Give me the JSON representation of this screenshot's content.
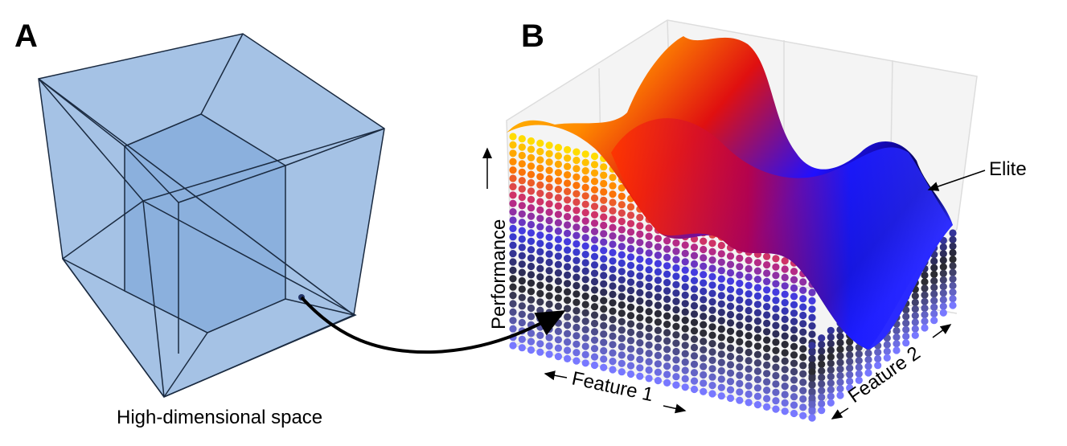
{
  "panels": [
    {
      "letter": "A",
      "caption": "High-dimensional space"
    },
    {
      "letter": "B",
      "y_axis_label": "Performance",
      "x_axis_label": "Feature 1",
      "z_axis_label": "Feature 2",
      "annotation": "Elite"
    }
  ]
}
